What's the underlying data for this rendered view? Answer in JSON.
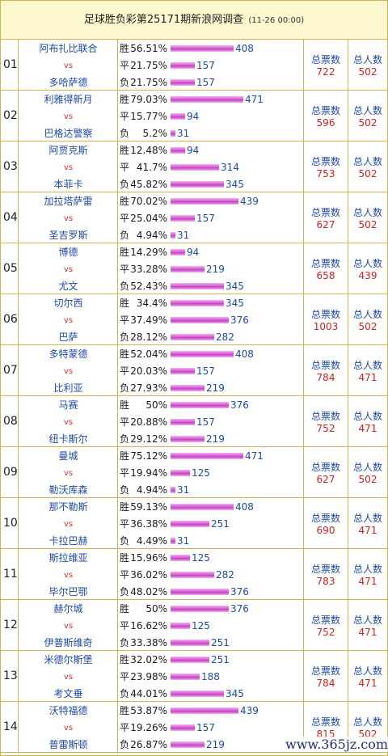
{
  "title": {
    "main": "足球胜负彩第25171期新浪网调查",
    "sub": "(11-26 00:00)"
  },
  "labels": {
    "vs": "vs",
    "win": "胜",
    "draw": "平",
    "lose": "负",
    "total_votes": "总票数",
    "total_people": "总人数"
  },
  "watermark": "www.365jz.com",
  "bar_color": "#c943c6",
  "rows": [
    {
      "idx": "01",
      "home": "阿布扎比联合",
      "away": "多哈萨德",
      "win": {
        "pct": "56.51%",
        "count": "408"
      },
      "draw": {
        "pct": "21.75%",
        "count": "157"
      },
      "lose": {
        "pct": "21.75%",
        "count": "157"
      },
      "votes": "722",
      "people": "502"
    },
    {
      "idx": "02",
      "home": "利雅得新月",
      "away": "巴格达警察",
      "win": {
        "pct": "79.03%",
        "count": "471"
      },
      "draw": {
        "pct": "15.77%",
        "count": "94"
      },
      "lose": {
        "pct": "5.2%",
        "count": "31"
      },
      "votes": "596",
      "people": "502"
    },
    {
      "idx": "03",
      "home": "阿贾克斯",
      "away": "本菲卡",
      "win": {
        "pct": "12.48%",
        "count": "94"
      },
      "draw": {
        "pct": "41.7%",
        "count": "314"
      },
      "lose": {
        "pct": "45.82%",
        "count": "345"
      },
      "votes": "753",
      "people": "502"
    },
    {
      "idx": "04",
      "home": "加拉塔萨雷",
      "away": "圣吉罗斯",
      "win": {
        "pct": "70.02%",
        "count": "439"
      },
      "draw": {
        "pct": "25.04%",
        "count": "157"
      },
      "lose": {
        "pct": "4.94%",
        "count": "31"
      },
      "votes": "627",
      "people": "502"
    },
    {
      "idx": "05",
      "home": "博德",
      "away": "尤文",
      "win": {
        "pct": "14.29%",
        "count": "94"
      },
      "draw": {
        "pct": "33.28%",
        "count": "219"
      },
      "lose": {
        "pct": "52.43%",
        "count": "345"
      },
      "votes": "658",
      "people": "439"
    },
    {
      "idx": "06",
      "home": "切尔西",
      "away": "巴萨",
      "win": {
        "pct": "34.4%",
        "count": "345"
      },
      "draw": {
        "pct": "37.49%",
        "count": "376"
      },
      "lose": {
        "pct": "28.12%",
        "count": "282"
      },
      "votes": "1003",
      "people": "502"
    },
    {
      "idx": "07",
      "home": "多特蒙德",
      "away": "比利亚",
      "win": {
        "pct": "52.04%",
        "count": "408"
      },
      "draw": {
        "pct": "20.03%",
        "count": "157"
      },
      "lose": {
        "pct": "27.93%",
        "count": "219"
      },
      "votes": "784",
      "people": "471"
    },
    {
      "idx": "08",
      "home": "马赛",
      "away": "纽卡斯尔",
      "win": {
        "pct": "50%",
        "count": "376"
      },
      "draw": {
        "pct": "20.88%",
        "count": "157"
      },
      "lose": {
        "pct": "29.12%",
        "count": "219"
      },
      "votes": "752",
      "people": "471"
    },
    {
      "idx": "09",
      "home": "曼城",
      "away": "勒沃库森",
      "win": {
        "pct": "75.12%",
        "count": "471"
      },
      "draw": {
        "pct": "19.94%",
        "count": "125"
      },
      "lose": {
        "pct": "4.94%",
        "count": "31"
      },
      "votes": "627",
      "people": "502"
    },
    {
      "idx": "10",
      "home": "那不勒斯",
      "away": "卡拉巴赫",
      "win": {
        "pct": "59.13%",
        "count": "408"
      },
      "draw": {
        "pct": "36.38%",
        "count": "251"
      },
      "lose": {
        "pct": "4.49%",
        "count": "31"
      },
      "votes": "690",
      "people": "471"
    },
    {
      "idx": "11",
      "home": "斯拉维亚",
      "away": "毕尔巴鄂",
      "win": {
        "pct": "15.96%",
        "count": "125"
      },
      "draw": {
        "pct": "36.02%",
        "count": "282"
      },
      "lose": {
        "pct": "48.02%",
        "count": "376"
      },
      "votes": "783",
      "people": "471"
    },
    {
      "idx": "12",
      "home": "赫尔城",
      "away": "伊普斯维奇",
      "win": {
        "pct": "50%",
        "count": "376"
      },
      "draw": {
        "pct": "16.62%",
        "count": "125"
      },
      "lose": {
        "pct": "33.38%",
        "count": "251"
      },
      "votes": "752",
      "people": "471"
    },
    {
      "idx": "13",
      "home": "米德尔斯堡",
      "away": "考文垂",
      "win": {
        "pct": "32.02%",
        "count": "251"
      },
      "draw": {
        "pct": "23.98%",
        "count": "188"
      },
      "lose": {
        "pct": "44.01%",
        "count": "345"
      },
      "votes": "784",
      "people": "471"
    },
    {
      "idx": "14",
      "home": "沃特福德",
      "away": "普雷斯顿",
      "win": {
        "pct": "53.87%",
        "count": "439"
      },
      "draw": {
        "pct": "19.26%",
        "count": "157"
      },
      "lose": {
        "pct": "26.87%",
        "count": "219"
      },
      "votes": "815",
      "people": "502"
    }
  ]
}
